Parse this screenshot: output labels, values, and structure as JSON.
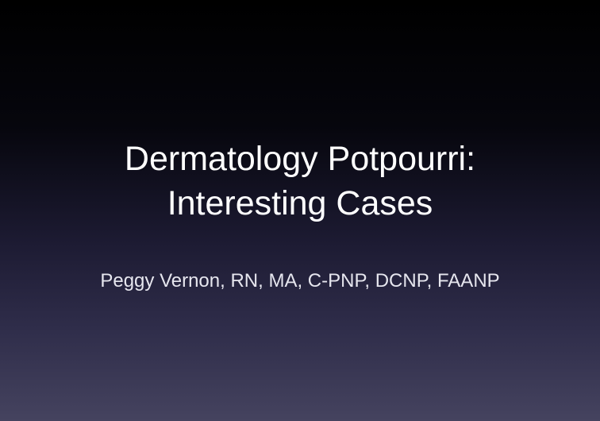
{
  "slide": {
    "title_line1": "Dermatology Potpourri:",
    "title_line2": "Interesting Cases",
    "subtitle": "Peggy Vernon, RN, MA, C-PNP, DCNP, FAANP"
  }
}
